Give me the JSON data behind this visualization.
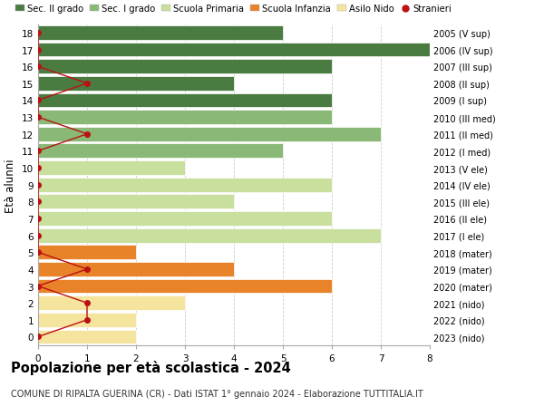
{
  "ages": [
    0,
    1,
    2,
    3,
    4,
    5,
    6,
    7,
    8,
    9,
    10,
    11,
    12,
    13,
    14,
    15,
    16,
    17,
    18
  ],
  "bar_values": [
    2,
    2,
    3,
    6,
    4,
    2,
    7,
    6,
    4,
    6,
    3,
    5,
    7,
    6,
    6,
    4,
    6,
    8,
    5
  ],
  "stranieri": [
    0,
    1,
    1,
    0,
    1,
    0,
    0,
    0,
    0,
    0,
    0,
    0,
    1,
    0,
    0,
    1,
    0,
    0,
    0
  ],
  "right_labels": [
    "2023 (nido)",
    "2022 (nido)",
    "2021 (nido)",
    "2020 (mater)",
    "2019 (mater)",
    "2018 (mater)",
    "2017 (I ele)",
    "2016 (II ele)",
    "2015 (III ele)",
    "2014 (IV ele)",
    "2013 (V ele)",
    "2012 (I med)",
    "2011 (II med)",
    "2010 (III med)",
    "2009 (I sup)",
    "2008 (II sup)",
    "2007 (III sup)",
    "2006 (IV sup)",
    "2005 (V sup)"
  ],
  "bar_colors": [
    "#f5e49e",
    "#f5e49e",
    "#f5e49e",
    "#e8832a",
    "#e8832a",
    "#e8832a",
    "#c8df9e",
    "#c8df9e",
    "#c8df9e",
    "#c8df9e",
    "#c8df9e",
    "#8ab876",
    "#8ab876",
    "#8ab876",
    "#4a7c42",
    "#4a7c42",
    "#4a7c42",
    "#4a7c42",
    "#4a7c42"
  ],
  "legend_labels": [
    "Sec. II grado",
    "Sec. I grado",
    "Scuola Primaria",
    "Scuola Infanzia",
    "Asilo Nido",
    "Stranieri"
  ],
  "legend_colors": [
    "#4a7c42",
    "#8ab876",
    "#c8df9e",
    "#e8832a",
    "#f5e49e",
    "#bb1111"
  ],
  "ylabel": "Età alunni",
  "title": "Popolazione per età scolastica - 2024",
  "subtitle": "COMUNE DI RIPALTA GUERINA (CR) - Dati ISTAT 1° gennaio 2024 - Elaborazione TUTTITALIA.IT",
  "xlim": [
    0,
    8
  ],
  "bar_height": 0.85,
  "stranieri_color": "#bb1111",
  "grid_color": "#cccccc",
  "bg_color": "#ffffff"
}
